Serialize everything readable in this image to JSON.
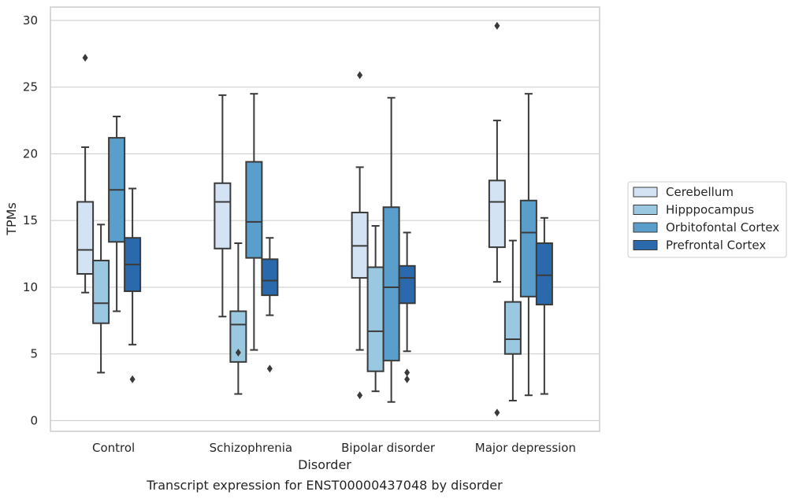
{
  "caption": "Transcript expression for ENST00000437048 by disorder",
  "chart_data": {
    "type": "boxplot",
    "xlabel": "Disorder",
    "ylabel": "TPMs",
    "ylim": [
      -0.8,
      31
    ],
    "yticks": [
      0,
      5,
      10,
      15,
      20,
      25,
      30
    ],
    "grid": "horizontal",
    "legend_position": "right",
    "categories": [
      "Control",
      "Schizophrenia",
      "Bipolar disorder",
      "Major depression"
    ],
    "series": [
      {
        "name": "Cerebellum",
        "color": "#d3e3f3",
        "boxes": [
          {
            "whislo": 9.6,
            "q1": 11.0,
            "med": 12.8,
            "q3": 16.4,
            "whishi": 20.5,
            "fliers": [
              27.2
            ]
          },
          {
            "whislo": 7.8,
            "q1": 12.9,
            "med": 16.4,
            "q3": 17.8,
            "whishi": 24.4,
            "fliers": []
          },
          {
            "whislo": 5.3,
            "q1": 10.7,
            "med": 13.1,
            "q3": 15.6,
            "whishi": 19.0,
            "fliers": [
              25.9,
              1.9
            ]
          },
          {
            "whislo": 10.4,
            "q1": 13.0,
            "med": 16.4,
            "q3": 18.0,
            "whishi": 22.5,
            "fliers": [
              29.6,
              0.6
            ]
          }
        ]
      },
      {
        "name": "Hipppocampus",
        "color": "#9ac8e0",
        "boxes": [
          {
            "whislo": 3.6,
            "q1": 7.3,
            "med": 8.8,
            "q3": 12.0,
            "whishi": 14.7,
            "fliers": []
          },
          {
            "whislo": 2.0,
            "q1": 4.4,
            "med": 7.2,
            "q3": 8.2,
            "whishi": 13.3,
            "fliers": [
              5.1
            ]
          },
          {
            "whislo": 2.2,
            "q1": 3.7,
            "med": 6.7,
            "q3": 11.5,
            "whishi": 14.6,
            "fliers": []
          },
          {
            "whislo": 1.5,
            "q1": 5.0,
            "med": 6.1,
            "q3": 8.9,
            "whishi": 13.5,
            "fliers": []
          }
        ]
      },
      {
        "name": "Orbitofontal Cortex",
        "color": "#5a9fcc",
        "boxes": [
          {
            "whislo": 8.2,
            "q1": 13.4,
            "med": 17.3,
            "q3": 21.2,
            "whishi": 22.8,
            "fliers": []
          },
          {
            "whislo": 5.3,
            "q1": 12.2,
            "med": 14.9,
            "q3": 19.4,
            "whishi": 24.5,
            "fliers": []
          },
          {
            "whislo": 1.4,
            "q1": 4.5,
            "med": 10.0,
            "q3": 16.0,
            "whishi": 24.2,
            "fliers": []
          },
          {
            "whislo": 1.9,
            "q1": 9.3,
            "med": 14.1,
            "q3": 16.5,
            "whishi": 24.5,
            "fliers": []
          }
        ]
      },
      {
        "name": "Prefrontal Cortex",
        "color": "#2a6aac",
        "boxes": [
          {
            "whislo": 5.7,
            "q1": 9.7,
            "med": 11.7,
            "q3": 13.7,
            "whishi": 17.4,
            "fliers": [
              3.1
            ]
          },
          {
            "whislo": 7.9,
            "q1": 9.4,
            "med": 10.5,
            "q3": 12.1,
            "whishi": 13.7,
            "fliers": [
              3.9
            ]
          },
          {
            "whislo": 5.2,
            "q1": 8.8,
            "med": 10.7,
            "q3": 11.6,
            "whishi": 14.1,
            "fliers": [
              3.6,
              3.1
            ]
          },
          {
            "whislo": 2.0,
            "q1": 8.7,
            "med": 10.9,
            "q3": 13.3,
            "whishi": 15.2,
            "fliers": []
          }
        ]
      }
    ]
  }
}
